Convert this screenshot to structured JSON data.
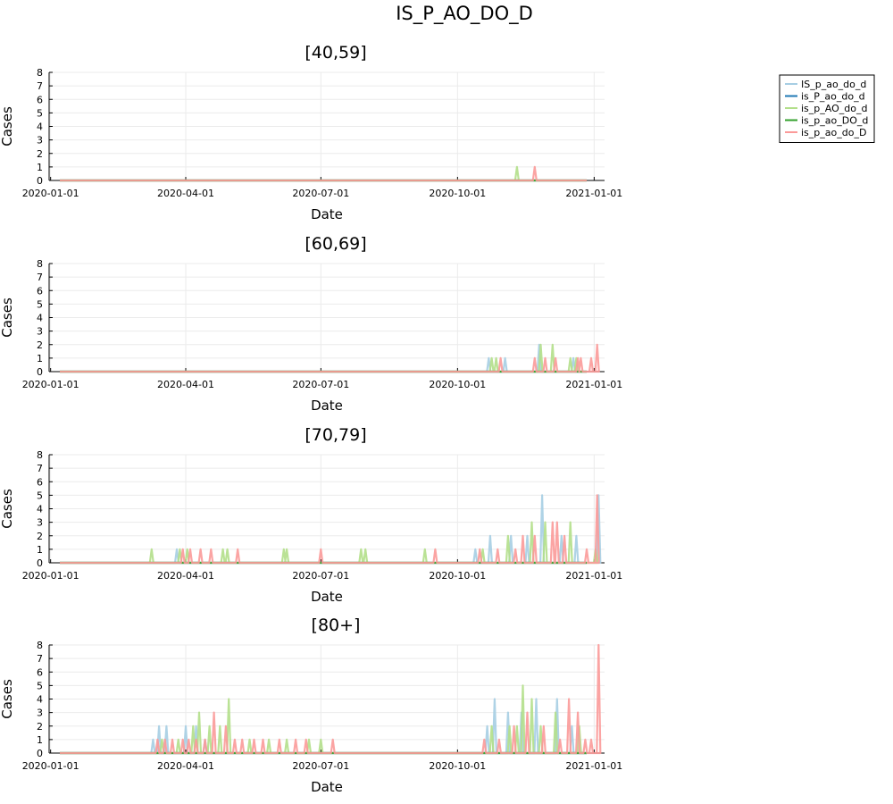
{
  "figure": {
    "suptitle": "IS_P_AO_DO_D"
  },
  "legend": {
    "placement": "top-right",
    "entries": [
      {
        "label": "IS_p_ao_do_d",
        "color": "#a6cee3"
      },
      {
        "label": "is_P_ao_do_d",
        "color": "#1f78b4"
      },
      {
        "label": "is_p_AO_do_d",
        "color": "#b2df8a"
      },
      {
        "label": "is_p_ao_DO_d",
        "color": "#33a02c"
      },
      {
        "label": "is_p_ao_do_D",
        "color": "#fb9a99"
      }
    ]
  },
  "chart_data": [
    {
      "type": "line",
      "title": "[40,59]",
      "xlabel": "Date",
      "ylabel": "Cases",
      "xlim": [
        "2019-12-31",
        "2021-01-08"
      ],
      "ylim": [
        0,
        8
      ],
      "yticks": [
        0,
        1,
        2,
        3,
        4,
        5,
        6,
        7,
        8
      ],
      "xticks": [
        "2020-01-01",
        "2020-04-01",
        "2020-07-01",
        "2020-10-01",
        "2021-01-01"
      ],
      "grid": true,
      "series": [
        {
          "name": "IS_p_ao_do_d",
          "spikes": []
        },
        {
          "name": "is_P_ao_do_d",
          "spikes": []
        },
        {
          "name": "is_p_AO_do_d",
          "spikes": [
            [
              "2020-11-10",
              1
            ]
          ]
        },
        {
          "name": "is_p_ao_DO_d",
          "spikes": []
        },
        {
          "name": "is_p_ao_do_D",
          "spikes": [
            [
              "2020-11-22",
              1
            ]
          ]
        }
      ]
    },
    {
      "type": "line",
      "title": "[60,69]",
      "xlabel": "Date",
      "ylabel": "Cases",
      "xlim": [
        "2019-12-31",
        "2021-01-08"
      ],
      "ylim": [
        0,
        8
      ],
      "yticks": [
        0,
        1,
        2,
        3,
        4,
        5,
        6,
        7,
        8
      ],
      "xticks": [
        "2020-01-01",
        "2020-04-01",
        "2020-07-01",
        "2020-10-01",
        "2021-01-01"
      ],
      "grid": true,
      "series": [
        {
          "name": "IS_p_ao_do_d",
          "spikes": [
            [
              "2020-10-22",
              1
            ],
            [
              "2020-11-02",
              1
            ],
            [
              "2020-11-25",
              2
            ],
            [
              "2020-12-18",
              1
            ]
          ]
        },
        {
          "name": "is_P_ao_do_d",
          "spikes": []
        },
        {
          "name": "is_p_AO_do_d",
          "spikes": [
            [
              "2020-10-24",
              1
            ],
            [
              "2020-10-27",
              1
            ],
            [
              "2020-11-26",
              2
            ],
            [
              "2020-12-04",
              2
            ],
            [
              "2020-12-16",
              1
            ],
            [
              "2020-12-20",
              1
            ]
          ]
        },
        {
          "name": "is_p_ao_DO_d",
          "spikes": []
        },
        {
          "name": "is_p_ao_do_D",
          "spikes": [
            [
              "2020-10-30",
              1
            ],
            [
              "2020-11-22",
              1
            ],
            [
              "2020-11-29",
              1
            ],
            [
              "2020-12-06",
              1
            ],
            [
              "2020-12-21",
              1
            ],
            [
              "2020-12-23",
              1
            ],
            [
              "2020-12-30",
              1
            ],
            [
              "2021-01-03",
              2
            ]
          ]
        }
      ]
    },
    {
      "type": "line",
      "title": "[70,79]",
      "xlabel": "Date",
      "ylabel": "Cases",
      "xlim": [
        "2019-12-31",
        "2021-01-08"
      ],
      "ylim": [
        0,
        8
      ],
      "yticks": [
        0,
        1,
        2,
        3,
        4,
        5,
        6,
        7,
        8
      ],
      "xticks": [
        "2020-01-01",
        "2020-04-01",
        "2020-07-01",
        "2020-10-01",
        "2021-01-01"
      ],
      "grid": true,
      "series": [
        {
          "name": "IS_p_ao_do_d",
          "spikes": [
            [
              "2020-03-26",
              1
            ],
            [
              "2020-10-13",
              1
            ],
            [
              "2020-10-23",
              2
            ],
            [
              "2020-11-06",
              2
            ],
            [
              "2020-11-17",
              2
            ],
            [
              "2020-11-27",
              5
            ],
            [
              "2020-12-10",
              2
            ],
            [
              "2020-12-20",
              2
            ],
            [
              "2021-01-04",
              5
            ]
          ]
        },
        {
          "name": "is_P_ao_do_d",
          "spikes": []
        },
        {
          "name": "is_p_AO_do_d",
          "spikes": [
            [
              "2020-03-09",
              1
            ],
            [
              "2020-03-28",
              1
            ],
            [
              "2020-04-02",
              1
            ],
            [
              "2020-04-26",
              1
            ],
            [
              "2020-04-29",
              1
            ],
            [
              "2020-06-06",
              1
            ],
            [
              "2020-06-08",
              1
            ],
            [
              "2020-07-28",
              1
            ],
            [
              "2020-07-31",
              1
            ],
            [
              "2020-09-09",
              1
            ],
            [
              "2020-10-18",
              1
            ],
            [
              "2020-11-04",
              2
            ],
            [
              "2020-11-20",
              3
            ],
            [
              "2020-11-29",
              3
            ],
            [
              "2020-12-16",
              3
            ],
            [
              "2021-01-02",
              1
            ]
          ]
        },
        {
          "name": "is_p_ao_DO_d",
          "spikes": []
        },
        {
          "name": "is_p_ao_do_D",
          "spikes": [
            [
              "2020-03-30",
              1
            ],
            [
              "2020-04-04",
              1
            ],
            [
              "2020-04-11",
              1
            ],
            [
              "2020-04-18",
              1
            ],
            [
              "2020-05-06",
              1
            ],
            [
              "2020-07-01",
              1
            ],
            [
              "2020-09-16",
              1
            ],
            [
              "2020-10-16",
              1
            ],
            [
              "2020-10-28",
              1
            ],
            [
              "2020-11-09",
              1
            ],
            [
              "2020-11-14",
              2
            ],
            [
              "2020-11-22",
              2
            ],
            [
              "2020-12-04",
              3
            ],
            [
              "2020-12-07",
              3
            ],
            [
              "2020-12-12",
              2
            ],
            [
              "2020-12-27",
              1
            ],
            [
              "2021-01-03",
              5
            ]
          ]
        }
      ]
    },
    {
      "type": "line",
      "title": "[80+]",
      "xlabel": "Date",
      "ylabel": "Cases",
      "xlim": [
        "2019-12-31",
        "2021-01-08"
      ],
      "ylim": [
        0,
        8
      ],
      "yticks": [
        0,
        1,
        2,
        3,
        4,
        5,
        6,
        7,
        8
      ],
      "xticks": [
        "2020-01-01",
        "2020-04-01",
        "2020-07-01",
        "2020-10-01",
        "2021-01-01"
      ],
      "grid": true,
      "series": [
        {
          "name": "IS_p_ao_do_d",
          "spikes": [
            [
              "2020-03-10",
              1
            ],
            [
              "2020-03-14",
              2
            ],
            [
              "2020-03-19",
              2
            ],
            [
              "2020-04-01",
              2
            ],
            [
              "2020-04-08",
              2
            ],
            [
              "2020-04-14",
              1
            ],
            [
              "2020-10-21",
              2
            ],
            [
              "2020-10-26",
              4
            ],
            [
              "2020-11-04",
              3
            ],
            [
              "2020-11-13",
              3
            ],
            [
              "2020-11-23",
              4
            ],
            [
              "2020-12-07",
              4
            ],
            [
              "2020-12-17",
              2
            ]
          ]
        },
        {
          "name": "is_P_ao_do_d",
          "spikes": []
        },
        {
          "name": "is_p_AO_do_d",
          "spikes": [
            [
              "2020-03-16",
              1
            ],
            [
              "2020-03-27",
              1
            ],
            [
              "2020-04-06",
              2
            ],
            [
              "2020-04-10",
              3
            ],
            [
              "2020-04-17",
              2
            ],
            [
              "2020-04-24",
              2
            ],
            [
              "2020-04-30",
              4
            ],
            [
              "2020-05-14",
              1
            ],
            [
              "2020-05-27",
              1
            ],
            [
              "2020-06-08",
              1
            ],
            [
              "2020-06-23",
              1
            ],
            [
              "2020-07-01",
              1
            ],
            [
              "2020-10-24",
              2
            ],
            [
              "2020-11-05",
              2
            ],
            [
              "2020-11-10",
              2
            ],
            [
              "2020-11-14",
              5
            ],
            [
              "2020-11-20",
              4
            ],
            [
              "2020-11-26",
              2
            ],
            [
              "2020-12-06",
              3
            ],
            [
              "2020-12-22",
              2
            ]
          ]
        },
        {
          "name": "is_p_ao_DO_d",
          "spikes": []
        },
        {
          "name": "is_p_ao_do_D",
          "spikes": [
            [
              "2020-03-13",
              1
            ],
            [
              "2020-03-18",
              1
            ],
            [
              "2020-03-23",
              1
            ],
            [
              "2020-03-30",
              1
            ],
            [
              "2020-04-03",
              1
            ],
            [
              "2020-04-08",
              1
            ],
            [
              "2020-04-14",
              1
            ],
            [
              "2020-04-20",
              3
            ],
            [
              "2020-04-28",
              2
            ],
            [
              "2020-05-04",
              1
            ],
            [
              "2020-05-09",
              1
            ],
            [
              "2020-05-17",
              1
            ],
            [
              "2020-05-23",
              1
            ],
            [
              "2020-06-03",
              1
            ],
            [
              "2020-06-14",
              1
            ],
            [
              "2020-06-21",
              1
            ],
            [
              "2020-07-09",
              1
            ],
            [
              "2020-10-19",
              1
            ],
            [
              "2020-10-29",
              1
            ],
            [
              "2020-11-08",
              2
            ],
            [
              "2020-11-17",
              3
            ],
            [
              "2020-11-28",
              2
            ],
            [
              "2020-12-09",
              1
            ],
            [
              "2020-12-15",
              4
            ],
            [
              "2020-12-21",
              3
            ],
            [
              "2020-12-26",
              1
            ],
            [
              "2020-12-30",
              1
            ],
            [
              "2021-01-04",
              8
            ]
          ]
        }
      ]
    }
  ]
}
